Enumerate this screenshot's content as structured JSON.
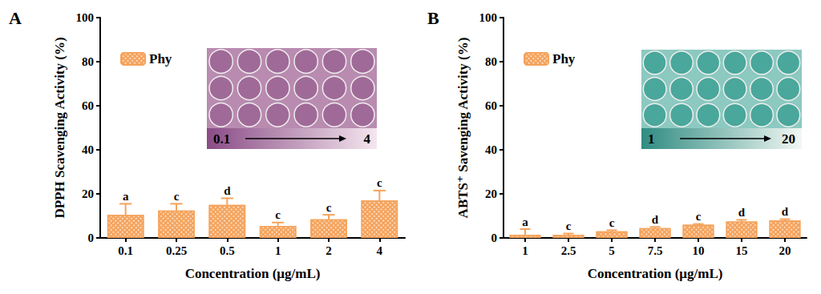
{
  "chart_data": [
    {
      "type": "bar",
      "title": "A",
      "x_label": "Concentration (μg/mL)",
      "y_label": "DPPH Scavenging Activity (%)",
      "categories": [
        "0.1",
        "0.25",
        "0.5",
        "1",
        "2",
        "4"
      ],
      "series": [
        {
          "name": "Phy",
          "color": "#F5A35C",
          "values": [
            10.5,
            12.5,
            15,
            5.5,
            8.5,
            17
          ],
          "errors": [
            5,
            3,
            3,
            1.5,
            2,
            4.5
          ],
          "significance": [
            "a",
            "c",
            "d",
            "c",
            "c",
            "c"
          ]
        }
      ],
      "ylim": [
        0,
        100
      ],
      "yticks": [
        0,
        20,
        40,
        60,
        80,
        100
      ],
      "annotations": [
        "0.1",
        "4"
      ],
      "legend": "upper left",
      "grid": false
    },
    {
      "type": "bar",
      "title": "B",
      "x_label": "Concentration (μg/mL)",
      "y_label": "ABTS⁺ Savenging Activity (%)",
      "categories": [
        "1",
        "2.5",
        "5",
        "7.5",
        "10",
        "15",
        "20"
      ],
      "series": [
        {
          "name": "Phy",
          "color": "#F5A35C",
          "values": [
            1.5,
            1.5,
            3,
            4.5,
            6,
            7.5,
            8
          ],
          "errors": [
            2.5,
            0.5,
            0.5,
            0.5,
            0.3,
            0.7,
            0.5
          ],
          "significance": [
            "a",
            "c",
            "c",
            "d",
            "c",
            "d",
            "d"
          ]
        }
      ],
      "ylim": [
        0,
        100
      ],
      "yticks": [
        0,
        20,
        40,
        60,
        80,
        100
      ],
      "annotations": [
        "1",
        "20"
      ],
      "legend": "upper left",
      "grid": false
    }
  ]
}
